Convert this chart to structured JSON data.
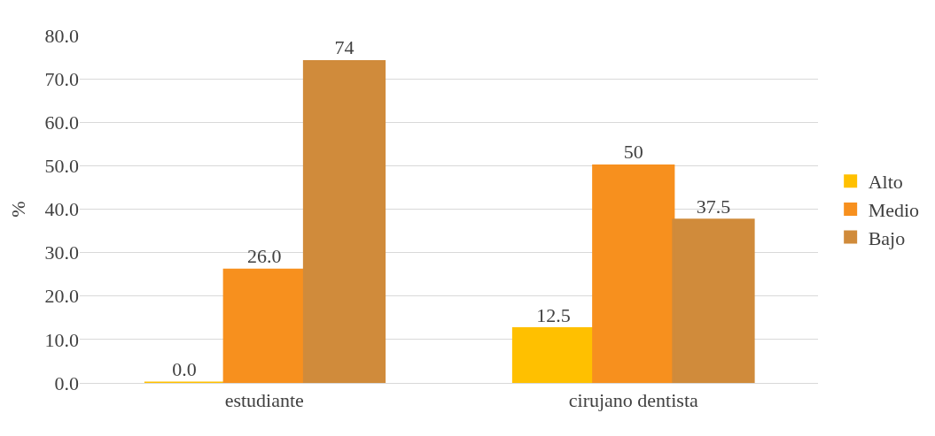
{
  "chart_data": {
    "type": "bar",
    "ylabel": "%",
    "categories": [
      "estudiante",
      "cirujano dentista"
    ],
    "series": [
      {
        "name": "Alto",
        "color": "#ffc000",
        "values": [
          0.0,
          12.5
        ],
        "value_labels": [
          "0.0",
          "12.5"
        ]
      },
      {
        "name": "Medio",
        "color": "#f7901e",
        "values": [
          26.0,
          50
        ],
        "value_labels": [
          "26.0",
          "50"
        ]
      },
      {
        "name": "Bajo",
        "color": "#d08b3b",
        "values": [
          74,
          37.5
        ],
        "value_labels": [
          "74",
          "37.5"
        ]
      }
    ],
    "ylim": [
      0,
      80
    ],
    "yticks": [
      {
        "value": 0,
        "label": "0.0"
      },
      {
        "value": 10,
        "label": "10.0"
      },
      {
        "value": 20,
        "label": "20.0"
      },
      {
        "value": 30,
        "label": "30.0"
      },
      {
        "value": 40,
        "label": "40.0"
      },
      {
        "value": 50,
        "label": "50.0"
      },
      {
        "value": 60,
        "label": "60.0"
      },
      {
        "value": 70,
        "label": "70.0"
      },
      {
        "value": 80,
        "label": "80.0"
      }
    ],
    "grid": "y",
    "legend": "right"
  }
}
